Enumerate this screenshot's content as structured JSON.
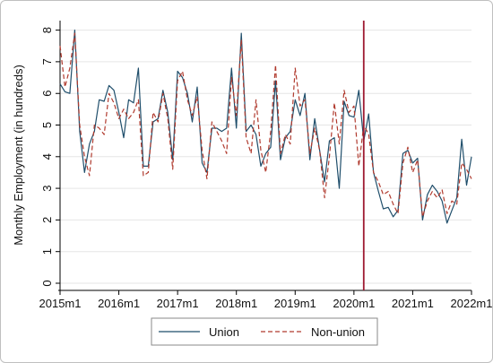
{
  "chart_data": {
    "type": "line",
    "title": "",
    "xlabel": "",
    "ylabel": "Monthly Employment (in hundreds)",
    "x_start": "2015m1",
    "x_step": "1 month",
    "x_ticks": [
      "2015m1",
      "2016m1",
      "2017m1",
      "2018m1",
      "2019m1",
      "2020m1",
      "2021m1",
      "2022m1"
    ],
    "y_ticks": [
      0,
      1,
      2,
      3,
      4,
      5,
      6,
      7,
      8
    ],
    "xlim": [
      "2015m1",
      "2022m1"
    ],
    "ylim": [
      0,
      8.3
    ],
    "grid": "horizontal",
    "legend": "bottom",
    "vertical_line": {
      "x": "2020m3",
      "color": "#9e1b32"
    },
    "series": [
      {
        "name": "Union",
        "color": "#1f4e6b",
        "style": "solid",
        "values": [
          6.3,
          6.05,
          6.0,
          8.0,
          4.8,
          3.5,
          4.4,
          4.8,
          5.8,
          5.75,
          6.25,
          6.1,
          5.4,
          4.6,
          5.8,
          5.7,
          6.8,
          3.7,
          3.7,
          5.1,
          5.2,
          6.1,
          5.4,
          3.9,
          6.7,
          6.5,
          6.0,
          5.1,
          6.2,
          3.8,
          3.5,
          4.9,
          4.9,
          4.8,
          4.9,
          6.8,
          4.9,
          7.9,
          4.8,
          5.0,
          4.7,
          3.7,
          4.1,
          4.3,
          6.4,
          3.9,
          4.6,
          4.8,
          5.8,
          5.3,
          6.0,
          3.9,
          5.2,
          4.2,
          3.2,
          4.5,
          4.6,
          3.0,
          5.75,
          5.3,
          5.25,
          6.1,
          4.5,
          5.35,
          3.5,
          2.9,
          2.35,
          2.4,
          2.1,
          2.3,
          4.1,
          4.2,
          3.8,
          3.95,
          2.0,
          2.8,
          3.1,
          2.9,
          2.6,
          1.9,
          2.3,
          2.7,
          4.55,
          3.1,
          4.0
        ]
      },
      {
        "name": "Non-union",
        "color": "#b03a2e",
        "style": "dashed",
        "values": [
          7.5,
          6.2,
          6.8,
          7.9,
          5.0,
          4.0,
          3.4,
          5.0,
          4.9,
          4.7,
          6.0,
          5.7,
          5.2,
          5.5,
          5.2,
          5.4,
          5.8,
          3.4,
          3.5,
          5.4,
          5.1,
          6.0,
          5.2,
          3.6,
          6.4,
          6.7,
          5.8,
          5.3,
          5.9,
          4.2,
          3.3,
          5.1,
          4.8,
          4.5,
          4.1,
          6.5,
          5.3,
          7.7,
          4.6,
          4.1,
          5.8,
          4.2,
          3.5,
          4.8,
          6.9,
          4.1,
          4.7,
          4.4,
          6.8,
          5.6,
          5.8,
          4.1,
          4.9,
          4.2,
          2.7,
          4.0,
          5.7,
          4.4,
          6.1,
          5.4,
          5.6,
          3.7,
          5.0,
          4.7,
          3.5,
          3.2,
          2.8,
          2.9,
          2.5,
          2.2,
          3.8,
          4.3,
          3.5,
          3.9,
          2.1,
          2.6,
          2.9,
          2.7,
          2.95,
          2.2,
          2.6,
          2.5,
          3.8,
          3.6,
          3.3
        ]
      }
    ]
  }
}
